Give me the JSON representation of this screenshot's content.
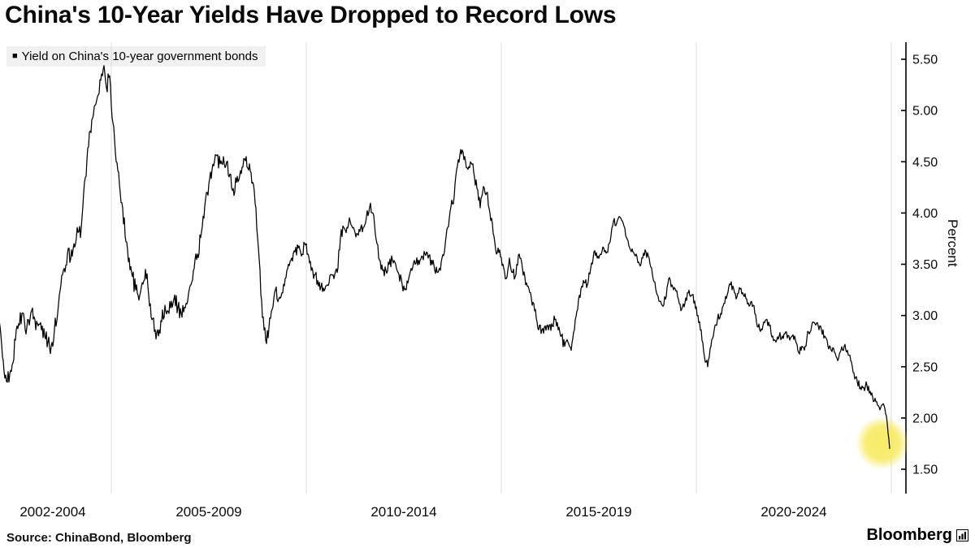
{
  "title": "China's 10-Year Yields Have Dropped to Record Lows",
  "legend": {
    "marker": "■",
    "label": "Yield on China's 10-year government bonds"
  },
  "source": "Source: ChinaBond, Bloomberg",
  "branding": {
    "logo_text": "Bloomberg",
    "logo_icon": "bar-chart-icon"
  },
  "colors": {
    "line": "#000000",
    "axis": "#000000",
    "grid": "#dcdcdc",
    "legend_bg": "#f1f1f1",
    "highlight": "#f7ea5e"
  },
  "chart_data": {
    "type": "line",
    "title": "China's 10-Year Yields Have Dropped to Record Lows",
    "series_name": "Yield on China's 10-year government bonds",
    "ylabel": "Percent",
    "xlabel": "",
    "grid": "vertical-only",
    "legend_position": "top-left",
    "y_ticks": [
      1.5,
      2.0,
      2.5,
      3.0,
      3.5,
      4.0,
      4.5,
      5.0,
      5.5
    ],
    "y_tick_labels": [
      "1.50",
      "2.00",
      "2.50",
      "3.00",
      "3.50",
      "4.00",
      "4.50",
      "5.00",
      "5.50"
    ],
    "y_range": [
      1.3,
      5.72
    ],
    "x_range": [
      2002,
      2025.4
    ],
    "x_group_labels": [
      {
        "label": "2002-2004",
        "center_year": 2003.5
      },
      {
        "label": "2005-2009",
        "center_year": 2007.5
      },
      {
        "label": "2010-2014",
        "center_year": 2012.5
      },
      {
        "label": "2015-2019",
        "center_year": 2017.5
      },
      {
        "label": "2020-2024",
        "center_year": 2022.5
      }
    ],
    "x_gridline_years": [
      2005,
      2010,
      2015,
      2020,
      2025
    ],
    "points": {
      "start_year": 2002,
      "points_per_year": 12,
      "unit": "percent",
      "values": [
        3.3,
        2.95,
        2.6,
        2.42,
        2.35,
        2.52,
        2.76,
        2.92,
        3.02,
        2.86,
        2.96,
        3.05,
        2.96,
        2.9,
        2.86,
        2.8,
        2.74,
        2.7,
        2.86,
        3.02,
        3.3,
        3.46,
        3.6,
        3.55,
        3.7,
        3.86,
        3.76,
        4.2,
        4.52,
        4.8,
        4.96,
        5.1,
        5.3,
        5.4,
        5.22,
        5.34,
        4.88,
        4.5,
        4.28,
        4.05,
        3.72,
        3.56,
        3.38,
        3.25,
        3.15,
        3.32,
        3.45,
        3.2,
        2.96,
        2.86,
        2.8,
        2.94,
        3.1,
        3.04,
        3.14,
        3.2,
        3.08,
        3.02,
        3.08,
        3.14,
        3.3,
        3.46,
        3.6,
        3.76,
        3.95,
        4.2,
        4.4,
        4.46,
        4.56,
        4.48,
        4.55,
        4.5,
        4.38,
        4.24,
        4.3,
        4.36,
        4.45,
        4.55,
        4.48,
        4.3,
        4.05,
        3.55,
        2.98,
        2.76,
        2.88,
        3.06,
        3.25,
        3.16,
        3.22,
        3.36,
        3.5,
        3.56,
        3.62,
        3.66,
        3.58,
        3.7,
        3.6,
        3.44,
        3.4,
        3.34,
        3.28,
        3.24,
        3.3,
        3.4,
        3.36,
        3.42,
        3.76,
        3.86,
        3.86,
        3.92,
        3.86,
        3.8,
        3.82,
        3.86,
        3.96,
        4.06,
        4.0,
        3.74,
        3.54,
        3.44,
        3.44,
        3.5,
        3.54,
        3.5,
        3.4,
        3.3,
        3.26,
        3.36,
        3.44,
        3.5,
        3.54,
        3.58,
        3.6,
        3.56,
        3.54,
        3.44,
        3.42,
        3.52,
        3.62,
        3.86,
        4.06,
        4.16,
        4.46,
        4.62,
        4.52,
        4.44,
        4.5,
        4.4,
        4.24,
        4.05,
        4.26,
        4.2,
        4.0,
        3.8,
        3.6,
        3.64,
        3.5,
        3.36,
        3.56,
        3.42,
        3.4,
        3.6,
        3.46,
        3.3,
        3.26,
        3.1,
        3.06,
        2.86,
        2.86,
        2.9,
        2.86,
        2.92,
        2.96,
        2.86,
        2.8,
        2.7,
        2.74,
        2.66,
        2.86,
        3.06,
        3.26,
        3.32,
        3.3,
        3.46,
        3.62,
        3.56,
        3.6,
        3.66,
        3.62,
        3.72,
        3.92,
        3.9,
        3.96,
        3.9,
        3.76,
        3.66,
        3.62,
        3.6,
        3.5,
        3.56,
        3.62,
        3.56,
        3.4,
        3.26,
        3.14,
        3.1,
        3.16,
        3.36,
        3.3,
        3.26,
        3.16,
        3.06,
        3.12,
        3.22,
        3.2,
        3.14,
        3.0,
        2.86,
        2.6,
        2.5,
        2.7,
        2.86,
        2.96,
        3.02,
        3.12,
        3.2,
        3.3,
        3.26,
        3.18,
        3.26,
        3.2,
        3.16,
        3.1,
        3.1,
        2.94,
        2.86,
        2.9,
        2.96,
        2.9,
        2.8,
        2.74,
        2.8,
        2.8,
        2.84,
        2.8,
        2.8,
        2.76,
        2.64,
        2.7,
        2.7,
        2.84,
        2.9,
        2.92,
        2.9,
        2.86,
        2.8,
        2.7,
        2.66,
        2.64,
        2.56,
        2.66,
        2.7,
        2.66,
        2.56,
        2.44,
        2.36,
        2.3,
        2.3,
        2.32,
        2.26,
        2.16,
        2.16,
        2.08,
        2.14,
        2.02,
        1.7
      ]
    },
    "highlight": {
      "type": "circle-glow",
      "at": "last-point",
      "value": 1.7,
      "note": "record low"
    }
  }
}
